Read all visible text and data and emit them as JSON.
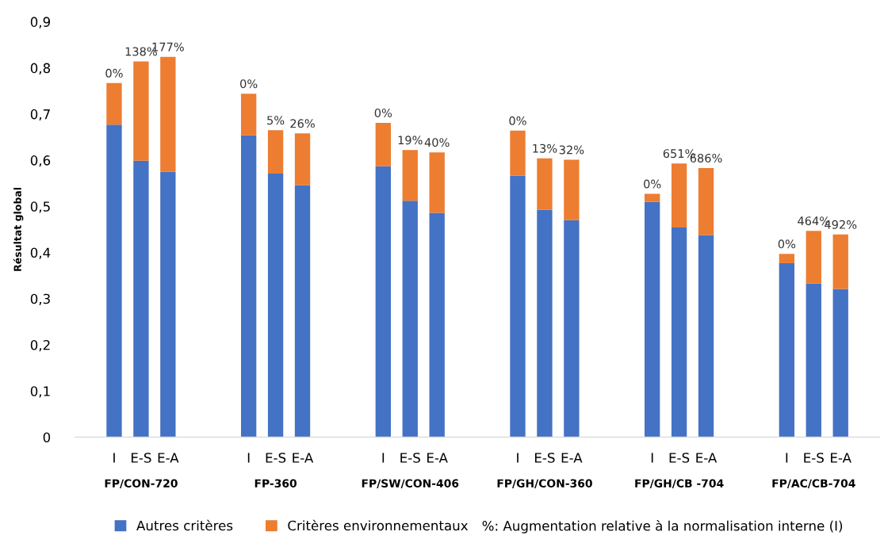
{
  "chart_data": {
    "type": "bar",
    "stacked": true,
    "ylabel": "Résultat global",
    "categories": [
      "I",
      "E-S",
      "E-A",
      null,
      null,
      "I",
      "E-S",
      "E-A",
      null,
      null,
      "I",
      "E-S",
      "E-A",
      null,
      null,
      "I",
      "E-S",
      "E-A",
      null,
      null,
      "I",
      "E-S",
      "E-A",
      null,
      null,
      "I",
      "E-S",
      "E-A"
    ],
    "series": [
      {
        "name": "Autres critères",
        "color": "#4472c4",
        "values": [
          0.677,
          0.599,
          0.575,
          null,
          null,
          0.654,
          0.571,
          0.546,
          null,
          null,
          0.587,
          0.512,
          0.486,
          null,
          null,
          0.566,
          0.493,
          0.47,
          null,
          null,
          0.51,
          0.454,
          0.438,
          null,
          null,
          0.377,
          0.333,
          0.321
        ]
      },
      {
        "name": "Critères environnementaux",
        "color": "#ed7d31",
        "values": [
          0.09,
          0.215,
          0.249,
          null,
          null,
          0.09,
          0.094,
          0.112,
          null,
          null,
          0.094,
          0.11,
          0.131,
          null,
          null,
          0.098,
          0.111,
          0.131,
          null,
          null,
          0.017,
          0.139,
          0.145,
          null,
          null,
          0.02,
          0.114,
          0.118
        ]
      }
    ],
    "annotations": [
      "0%",
      "138%",
      "177%",
      "0%",
      "5%",
      "26%",
      "0%",
      "19%",
      "40%",
      "0%",
      "13%",
      "32%",
      "0%",
      "651%",
      "686%",
      "0%",
      "464%",
      "492%",
      "FP/CON-720",
      "FP-360",
      "FP/SW/CON-406",
      "FP/GH/CON-360",
      "FP/GH/CB -704",
      "FP/AC/CB-704",
      "%: Augmentation relative à la normalisation interne (I)"
    ],
    "ylim": [
      0,
      0.9
    ],
    "yticks": [
      {
        "value": 0,
        "label": "0"
      },
      {
        "value": 0.1,
        "label": "0,1"
      },
      {
        "value": 0.2,
        "label": "0,2"
      },
      {
        "value": 0.3,
        "label": "0,3"
      },
      {
        "value": 0.4,
        "label": "0,4"
      },
      {
        "value": 0.5,
        "label": "0,5"
      },
      {
        "value": 0.6,
        "label": "0,6"
      },
      {
        "value": 0.7,
        "label": "0,7"
      },
      {
        "value": 0.8,
        "label": "0,8"
      },
      {
        "value": 0.9,
        "label": "0,9"
      }
    ],
    "grid": false,
    "legend": "bottom"
  }
}
